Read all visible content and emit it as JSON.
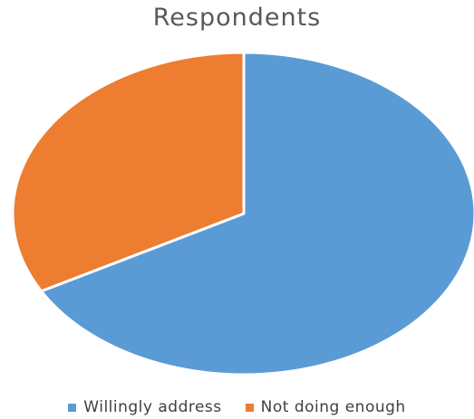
{
  "chart_data": {
    "type": "pie",
    "title": "Respondents",
    "series": [
      {
        "name": "Respondents",
        "labels": [
          "Willingly address",
          "Not doing enough"
        ],
        "values": [
          67,
          33
        ],
        "colors": [
          "#5B9BD5",
          "#ED7D31"
        ]
      }
    ],
    "start_angle_deg": 0,
    "direction": "clockwise",
    "legend_position": "bottom",
    "slice_border_color": "#FFFFFF"
  }
}
